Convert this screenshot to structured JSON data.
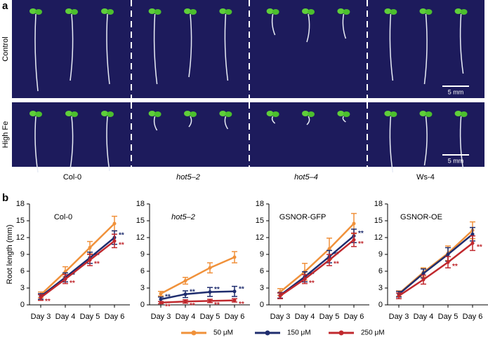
{
  "panel_a": {
    "label": "a",
    "rows": [
      "Control",
      "High Fe"
    ],
    "columns": [
      "Col-0",
      "hot5–2",
      "hot5–4",
      "Ws-4"
    ],
    "scale_bar": "5 mm"
  },
  "panel_b": {
    "label": "b",
    "legend": [
      {
        "name": "50 μM",
        "color": "#f0913a"
      },
      {
        "name": "150 μM",
        "color": "#1f2d6e"
      },
      {
        "name": "250 μM",
        "color": "#c0282d"
      }
    ]
  },
  "chart_data": [
    {
      "type": "line",
      "title": "Col-0",
      "ylabel": "Root length (mm)",
      "categories": [
        "Day 3",
        "Day 4",
        "Day 5",
        "Day 6"
      ],
      "ylim": [
        0,
        18
      ],
      "yticks": [
        0,
        3,
        6,
        9,
        12,
        15,
        18
      ],
      "series": [
        {
          "name": "50 μM",
          "color": "#f0913a",
          "values": [
            1.8,
            5.9,
            10.2,
            14.5
          ],
          "errors": [
            0.5,
            0.9,
            1.1,
            1.3
          ],
          "significance": [
            null,
            null,
            null,
            null
          ]
        },
        {
          "name": "150 μM",
          "color": "#1f2d6e",
          "values": [
            1.5,
            4.9,
            8.4,
            12.0
          ],
          "errors": [
            0.5,
            0.8,
            1.0,
            1.2
          ],
          "significance": [
            null,
            "**",
            "**",
            "**"
          ]
        },
        {
          "name": "250 μM",
          "color": "#c0282d",
          "values": [
            1.3,
            4.6,
            8.0,
            11.4
          ],
          "errors": [
            0.5,
            0.8,
            1.0,
            1.2
          ],
          "significance": [
            "**",
            "**",
            "**",
            "**"
          ]
        }
      ]
    },
    {
      "type": "line",
      "title": "hot5–2",
      "categories": [
        "Day 3",
        "Day 4",
        "Day 5",
        "Day 6"
      ],
      "ylim": [
        0,
        18
      ],
      "yticks": [
        0,
        3,
        6,
        9,
        12,
        15,
        18
      ],
      "series": [
        {
          "name": "50 μM",
          "color": "#f0913a",
          "values": [
            2.0,
            4.3,
            6.6,
            8.5
          ],
          "errors": [
            0.4,
            0.6,
            0.9,
            1.0
          ],
          "significance": [
            null,
            null,
            null,
            null
          ]
        },
        {
          "name": "150 μM",
          "color": "#1f2d6e",
          "values": [
            1.0,
            1.9,
            2.3,
            2.4
          ],
          "errors": [
            0.4,
            0.6,
            0.8,
            0.9
          ],
          "significance": [
            "**",
            "**",
            "**",
            "**"
          ]
        },
        {
          "name": "250 μM",
          "color": "#c0282d",
          "values": [
            0.4,
            0.6,
            0.7,
            0.8
          ],
          "errors": [
            0.2,
            0.3,
            0.3,
            0.3
          ],
          "significance": [
            "**",
            "**",
            "**",
            "**"
          ]
        }
      ]
    },
    {
      "type": "line",
      "title": "GSNOR-GFP",
      "categories": [
        "Day 3",
        "Day 4",
        "Day 5",
        "Day 6"
      ],
      "ylim": [
        0,
        18
      ],
      "yticks": [
        0,
        3,
        6,
        9,
        12,
        15,
        18
      ],
      "series": [
        {
          "name": "50 μM",
          "color": "#f0913a",
          "values": [
            2.3,
            5.9,
            10.0,
            14.5
          ],
          "errors": [
            0.6,
            1.5,
            1.9,
            1.8
          ],
          "significance": [
            null,
            null,
            null,
            null
          ]
        },
        {
          "name": "150 μM",
          "color": "#1f2d6e",
          "values": [
            1.7,
            5.0,
            8.6,
            12.3
          ],
          "errors": [
            0.5,
            0.9,
            1.1,
            1.2
          ],
          "significance": [
            null,
            "**",
            "**",
            "**"
          ]
        },
        {
          "name": "250 μM",
          "color": "#c0282d",
          "values": [
            1.6,
            4.6,
            8.0,
            11.6
          ],
          "errors": [
            0.5,
            0.8,
            1.0,
            1.2
          ],
          "significance": [
            null,
            "**",
            "**",
            "**"
          ]
        }
      ]
    },
    {
      "type": "line",
      "title": "GSNOR-OE",
      "categories": [
        "Day 3",
        "Day 4",
        "Day 5",
        "Day 6"
      ],
      "ylim": [
        0,
        18
      ],
      "yticks": [
        0,
        3,
        6,
        9,
        12,
        15,
        18
      ],
      "series": [
        {
          "name": "50 μM",
          "color": "#f0913a",
          "values": [
            2.0,
            5.8,
            9.2,
            13.3
          ],
          "errors": [
            0.5,
            0.8,
            1.3,
            1.5
          ],
          "significance": [
            null,
            null,
            null,
            null
          ]
        },
        {
          "name": "150 μM",
          "color": "#1f2d6e",
          "values": [
            1.9,
            5.6,
            9.0,
            12.6
          ],
          "errors": [
            0.5,
            0.8,
            1.2,
            1.2
          ],
          "significance": [
            null,
            null,
            null,
            null
          ]
        },
        {
          "name": "250 μM",
          "color": "#c0282d",
          "values": [
            1.6,
            4.5,
            7.6,
            11.0
          ],
          "errors": [
            0.5,
            0.8,
            1.0,
            1.3
          ],
          "significance": [
            null,
            null,
            "**",
            "**"
          ]
        }
      ]
    }
  ]
}
